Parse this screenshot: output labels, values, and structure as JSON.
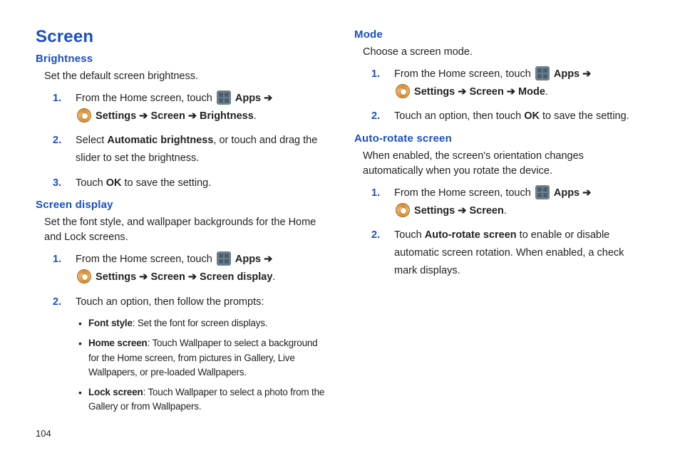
{
  "page_number": "104",
  "colors": {
    "heading_blue": "#1a4ec4",
    "body_text": "#231f20",
    "background": "#ffffff"
  },
  "left": {
    "h1": "Screen",
    "brightness": {
      "heading": "Brightness",
      "intro": "Set the default screen brightness.",
      "steps": {
        "s1_a": "From the Home screen, touch ",
        "s1_apps": " Apps ",
        "s1_arrow1": "➔",
        "s1_settings": " Settings ",
        "s1_arrow2": "➔",
        "s1_screen": " Screen ",
        "s1_arrow3": "➔",
        "s1_bright": " Brightness",
        "s1_dot": ".",
        "s2_a": "Select ",
        "s2_b": "Automatic brightness",
        "s2_c": ", or touch and drag the slider to set the brightness.",
        "s3_a": "Touch ",
        "s3_b": "OK",
        "s3_c": " to save the setting."
      }
    },
    "display": {
      "heading": "Screen display",
      "intro": "Set the font style, and wallpaper backgrounds for the Home and Lock screens.",
      "steps": {
        "s1_a": "From the Home screen, touch ",
        "s1_apps": " Apps ",
        "s1_arrow1": "➔",
        "s1_settings": " Settings ",
        "s1_arrow2": "➔",
        "s1_screen": " Screen ",
        "s1_arrow3": "➔",
        "s1_sd": " Screen display",
        "s1_dot": ".",
        "s2": "Touch an option, then follow the prompts:"
      },
      "bullets": {
        "b1_a": "Font style",
        "b1_b": ": Set the font for screen displays.",
        "b2_a": "Home screen",
        "b2_b": ": Touch Wallpaper to select a background for the Home screen, from pictures in Gallery, Live Wallpapers, or pre-loaded Wallpapers.",
        "b3_a": "Lock screen",
        "b3_b": ": Touch Wallpaper to select a photo from the Gallery or from Wallpapers."
      }
    }
  },
  "right": {
    "mode": {
      "heading": "Mode",
      "intro": "Choose a screen mode.",
      "steps": {
        "s1_a": "From the Home screen, touch ",
        "s1_apps": " Apps ",
        "s1_arrow1": "➔",
        "s1_settings": " Settings ",
        "s1_arrow2": "➔",
        "s1_screen": " Screen ",
        "s1_arrow3": "➔",
        "s1_mode": " Mode",
        "s1_dot": ".",
        "s2_a": "Touch an option, then touch ",
        "s2_b": "OK",
        "s2_c": " to save the setting."
      }
    },
    "autorotate": {
      "heading": "Auto-rotate screen",
      "intro": "When enabled, the screen's orientation changes automatically when you rotate the device.",
      "steps": {
        "s1_a": "From the Home screen, touch ",
        "s1_apps": " Apps ",
        "s1_arrow1": "➔",
        "s1_settings": " Settings ",
        "s1_arrow2": " ➔",
        "s1_screen": " Screen",
        "s1_dot": ".",
        "s2_a": "Touch ",
        "s2_b": "Auto-rotate screen",
        "s2_c": " to enable or disable automatic screen rotation. When enabled, a check mark displays."
      }
    }
  }
}
